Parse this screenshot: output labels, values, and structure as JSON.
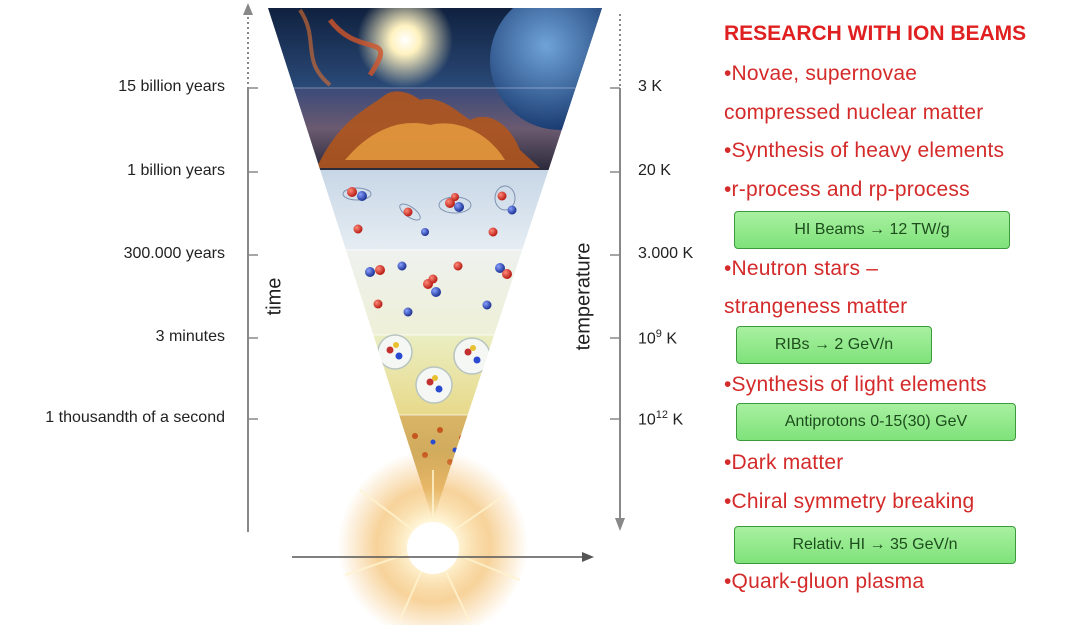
{
  "time_axis": {
    "title": "time",
    "labels": [
      "15 billion years",
      "1 billion years",
      "300.000 years",
      "3 minutes",
      "1 thousandth of a second"
    ]
  },
  "temperature_axis": {
    "title": "temperature",
    "labels": [
      {
        "base": "3 K",
        "sup": ""
      },
      {
        "base": "20 K",
        "sup": ""
      },
      {
        "base": "3.000 K",
        "sup": ""
      },
      {
        "base": "10",
        "sup": "9",
        "unit": " K"
      },
      {
        "base": "10",
        "sup": "12",
        "unit": " K"
      }
    ]
  },
  "research": {
    "title": "RESEARCH WITH ION BEAMS",
    "lines": [
      "•Novae, supernovae",
      "compressed nuclear matter",
      "•Synthesis of heavy elements",
      "•r-process and rp-process",
      "•Neutron stars –",
      "strangeness matter",
      "•Synthesis of light elements",
      "•Dark matter",
      "•Chiral symmetry breaking",
      "•Quark-gluon plasma"
    ],
    "boxes": [
      "HI Beams → 12 TW/g",
      "RIBs → 2 GeV/n",
      "Antiprotons 0-15(30) GeV",
      "Relativ. HI → 35 GeV/n"
    ]
  },
  "colors": {
    "research_text": "#d42a2a",
    "box_fill": "#8fe98a",
    "box_border": "#3c9a3c",
    "axis": "#888888"
  }
}
